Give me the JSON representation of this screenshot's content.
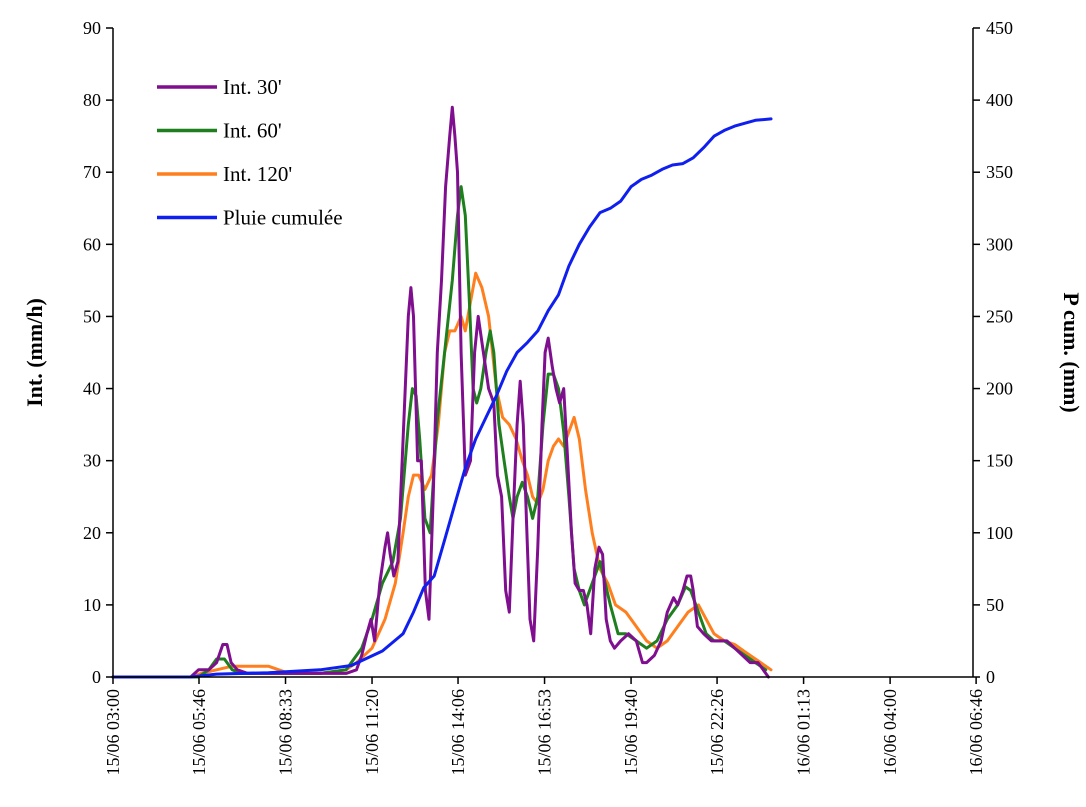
{
  "chart_data": {
    "type": "line",
    "title": "",
    "ylabel": "Int. (mm/h)",
    "y2label": "P cum. (mm)",
    "xlabel": "",
    "ylim": [
      0,
      90
    ],
    "y2lim": [
      0,
      450
    ],
    "yticks": [
      0,
      10,
      20,
      30,
      40,
      50,
      60,
      70,
      80,
      90
    ],
    "y2ticks": [
      0,
      50,
      100,
      150,
      200,
      250,
      300,
      350,
      400,
      450
    ],
    "xlim": [
      0,
      1660
    ],
    "xticks": [
      {
        "value": 0,
        "label": "15/06 03:00"
      },
      {
        "value": 166,
        "label": "15/06 05:46"
      },
      {
        "value": 333,
        "label": "15/06 08:33"
      },
      {
        "value": 500,
        "label": "15/06 11:20"
      },
      {
        "value": 666,
        "label": "15/06 14:06"
      },
      {
        "value": 833,
        "label": "15/06 16:53"
      },
      {
        "value": 1000,
        "label": "15/06 19:40"
      },
      {
        "value": 1166,
        "label": "15/06 22:26"
      },
      {
        "value": 1333,
        "label": "16/06 01:13"
      },
      {
        "value": 1500,
        "label": "16/06 04:00"
      },
      {
        "value": 1666,
        "label": "16/06 06:46"
      }
    ],
    "legend_position": "top-left",
    "grid": false,
    "series": [
      {
        "name": "Int. 30'",
        "color": "#7f0f8f",
        "axis": "left",
        "points": [
          [
            0,
            0
          ],
          [
            150,
            0
          ],
          [
            165,
            1
          ],
          [
            185,
            1
          ],
          [
            200,
            2
          ],
          [
            212,
            4.5
          ],
          [
            220,
            4.5
          ],
          [
            228,
            2
          ],
          [
            240,
            1
          ],
          [
            260,
            0.5
          ],
          [
            320,
            0.5
          ],
          [
            400,
            0.5
          ],
          [
            450,
            0.5
          ],
          [
            470,
            1
          ],
          [
            480,
            3
          ],
          [
            490,
            6
          ],
          [
            498,
            8
          ],
          [
            505,
            5
          ],
          [
            515,
            13
          ],
          [
            525,
            18
          ],
          [
            530,
            20
          ],
          [
            535,
            17
          ],
          [
            542,
            14
          ],
          [
            550,
            16
          ],
          [
            560,
            33
          ],
          [
            570,
            50
          ],
          [
            575,
            54
          ],
          [
            580,
            50
          ],
          [
            588,
            30
          ],
          [
            595,
            30
          ],
          [
            603,
            12
          ],
          [
            610,
            8
          ],
          [
            618,
            25
          ],
          [
            626,
            45
          ],
          [
            634,
            55
          ],
          [
            642,
            68
          ],
          [
            650,
            75
          ],
          [
            655,
            79
          ],
          [
            660,
            75
          ],
          [
            665,
            70
          ],
          [
            672,
            45
          ],
          [
            680,
            28
          ],
          [
            690,
            30
          ],
          [
            698,
            45
          ],
          [
            705,
            50
          ],
          [
            715,
            45
          ],
          [
            725,
            40
          ],
          [
            735,
            38
          ],
          [
            742,
            28
          ],
          [
            750,
            25
          ],
          [
            758,
            12
          ],
          [
            765,
            9
          ],
          [
            772,
            22
          ],
          [
            780,
            35
          ],
          [
            786,
            41
          ],
          [
            792,
            35
          ],
          [
            798,
            22
          ],
          [
            805,
            8
          ],
          [
            812,
            5
          ],
          [
            820,
            18
          ],
          [
            828,
            35
          ],
          [
            834,
            45
          ],
          [
            840,
            47
          ],
          [
            848,
            43
          ],
          [
            855,
            40
          ],
          [
            862,
            38
          ],
          [
            870,
            40
          ],
          [
            877,
            31
          ],
          [
            885,
            20
          ],
          [
            892,
            13
          ],
          [
            900,
            12
          ],
          [
            908,
            12
          ],
          [
            915,
            10
          ],
          [
            922,
            6
          ],
          [
            930,
            15
          ],
          [
            938,
            18
          ],
          [
            945,
            17
          ],
          [
            952,
            8
          ],
          [
            960,
            5
          ],
          [
            968,
            4
          ],
          [
            980,
            5
          ],
          [
            995,
            6
          ],
          [
            1010,
            5
          ],
          [
            1022,
            2
          ],
          [
            1030,
            2
          ],
          [
            1045,
            3
          ],
          [
            1058,
            5
          ],
          [
            1070,
            9
          ],
          [
            1082,
            11
          ],
          [
            1090,
            10
          ],
          [
            1100,
            12
          ],
          [
            1108,
            14
          ],
          [
            1115,
            14
          ],
          [
            1120,
            12
          ],
          [
            1128,
            7
          ],
          [
            1140,
            6
          ],
          [
            1155,
            5
          ],
          [
            1170,
            5
          ],
          [
            1185,
            5
          ],
          [
            1200,
            4
          ],
          [
            1215,
            3
          ],
          [
            1230,
            2
          ],
          [
            1245,
            2
          ],
          [
            1255,
            1
          ],
          [
            1265,
            0
          ]
        ]
      },
      {
        "name": "Int. 60'",
        "color": "#1f7f1f",
        "axis": "left",
        "points": [
          [
            0,
            0
          ],
          [
            20,
            0
          ],
          [
            40,
            0
          ],
          [
            165,
            0
          ],
          [
            185,
            1
          ],
          [
            200,
            2.5
          ],
          [
            215,
            2.5
          ],
          [
            230,
            1
          ],
          [
            250,
            0.5
          ],
          [
            300,
            0.5
          ],
          [
            400,
            0.5
          ],
          [
            450,
            1
          ],
          [
            480,
            4
          ],
          [
            500,
            8
          ],
          [
            520,
            13
          ],
          [
            540,
            16
          ],
          [
            555,
            22
          ],
          [
            570,
            35
          ],
          [
            578,
            40
          ],
          [
            585,
            39
          ],
          [
            592,
            33
          ],
          [
            602,
            22
          ],
          [
            612,
            20
          ],
          [
            625,
            35
          ],
          [
            640,
            45
          ],
          [
            655,
            55
          ],
          [
            665,
            64
          ],
          [
            672,
            68
          ],
          [
            680,
            64
          ],
          [
            688,
            52
          ],
          [
            695,
            40
          ],
          [
            702,
            38
          ],
          [
            710,
            40
          ],
          [
            720,
            45
          ],
          [
            728,
            48
          ],
          [
            735,
            45
          ],
          [
            745,
            35
          ],
          [
            755,
            30
          ],
          [
            765,
            25
          ],
          [
            772,
            22
          ],
          [
            780,
            25
          ],
          [
            790,
            27
          ],
          [
            800,
            25
          ],
          [
            810,
            22
          ],
          [
            820,
            25
          ],
          [
            830,
            35
          ],
          [
            840,
            42
          ],
          [
            850,
            42
          ],
          [
            860,
            40
          ],
          [
            870,
            34
          ],
          [
            880,
            25
          ],
          [
            890,
            15
          ],
          [
            900,
            12
          ],
          [
            910,
            10
          ],
          [
            920,
            12
          ],
          [
            930,
            14
          ],
          [
            940,
            16
          ],
          [
            950,
            13
          ],
          [
            960,
            10
          ],
          [
            975,
            6
          ],
          [
            990,
            6
          ],
          [
            1010,
            5
          ],
          [
            1030,
            4
          ],
          [
            1050,
            5
          ],
          [
            1070,
            8
          ],
          [
            1090,
            10
          ],
          [
            1105,
            12.5
          ],
          [
            1115,
            12
          ],
          [
            1130,
            9
          ],
          [
            1145,
            6
          ],
          [
            1160,
            5
          ],
          [
            1180,
            5
          ],
          [
            1200,
            4
          ],
          [
            1220,
            3
          ],
          [
            1240,
            2
          ],
          [
            1260,
            1
          ]
        ]
      },
      {
        "name": "Int. 120'",
        "color": "#ff7f1f",
        "axis": "left",
        "points": [
          [
            0,
            0
          ],
          [
            150,
            0
          ],
          [
            170,
            0.5
          ],
          [
            200,
            1
          ],
          [
            230,
            1.5
          ],
          [
            300,
            1.5
          ],
          [
            340,
            0.5
          ],
          [
            400,
            0.5
          ],
          [
            450,
            1
          ],
          [
            470,
            2
          ],
          [
            500,
            4
          ],
          [
            525,
            8
          ],
          [
            545,
            13
          ],
          [
            560,
            20
          ],
          [
            570,
            25
          ],
          [
            580,
            28
          ],
          [
            590,
            28
          ],
          [
            602,
            26
          ],
          [
            615,
            28
          ],
          [
            628,
            35
          ],
          [
            640,
            45
          ],
          [
            650,
            48
          ],
          [
            660,
            48
          ],
          [
            672,
            50
          ],
          [
            680,
            48
          ],
          [
            690,
            52
          ],
          [
            700,
            56
          ],
          [
            712,
            54
          ],
          [
            725,
            50
          ],
          [
            740,
            40
          ],
          [
            752,
            36
          ],
          [
            765,
            35
          ],
          [
            778,
            33
          ],
          [
            790,
            30
          ],
          [
            800,
            28
          ],
          [
            810,
            25
          ],
          [
            820,
            24
          ],
          [
            830,
            26
          ],
          [
            840,
            30
          ],
          [
            850,
            32
          ],
          [
            860,
            33
          ],
          [
            870,
            32
          ],
          [
            880,
            34
          ],
          [
            890,
            36
          ],
          [
            900,
            33
          ],
          [
            912,
            26
          ],
          [
            925,
            20
          ],
          [
            940,
            15
          ],
          [
            955,
            13
          ],
          [
            970,
            10
          ],
          [
            990,
            9
          ],
          [
            1010,
            7
          ],
          [
            1030,
            5
          ],
          [
            1050,
            4
          ],
          [
            1070,
            5
          ],
          [
            1090,
            7
          ],
          [
            1110,
            9
          ],
          [
            1130,
            10
          ],
          [
            1145,
            8
          ],
          [
            1160,
            6
          ],
          [
            1180,
            5
          ],
          [
            1200,
            4.5
          ],
          [
            1220,
            3.5
          ],
          [
            1240,
            2.5
          ],
          [
            1260,
            1.5
          ],
          [
            1270,
            1
          ]
        ]
      },
      {
        "name": "Pluie cumulée",
        "color": "#0f1fef",
        "axis": "right",
        "points": [
          [
            0,
            0
          ],
          [
            150,
            0
          ],
          [
            200,
            2
          ],
          [
            300,
            3
          ],
          [
            400,
            5
          ],
          [
            460,
            8
          ],
          [
            520,
            18
          ],
          [
            560,
            30
          ],
          [
            580,
            45
          ],
          [
            600,
            62
          ],
          [
            620,
            70
          ],
          [
            640,
            95
          ],
          [
            660,
            120
          ],
          [
            680,
            145
          ],
          [
            700,
            165
          ],
          [
            720,
            180
          ],
          [
            740,
            195
          ],
          [
            760,
            212
          ],
          [
            780,
            225
          ],
          [
            800,
            232
          ],
          [
            820,
            240
          ],
          [
            840,
            254
          ],
          [
            860,
            265
          ],
          [
            880,
            285
          ],
          [
            900,
            300
          ],
          [
            920,
            312
          ],
          [
            940,
            322
          ],
          [
            960,
            325
          ],
          [
            980,
            330
          ],
          [
            1000,
            340
          ],
          [
            1020,
            345
          ],
          [
            1040,
            348
          ],
          [
            1060,
            352
          ],
          [
            1080,
            355
          ],
          [
            1100,
            356
          ],
          [
            1120,
            360
          ],
          [
            1140,
            367
          ],
          [
            1160,
            375
          ],
          [
            1180,
            379
          ],
          [
            1200,
            382
          ],
          [
            1220,
            384
          ],
          [
            1240,
            386
          ],
          [
            1270,
            387
          ]
        ]
      }
    ]
  }
}
